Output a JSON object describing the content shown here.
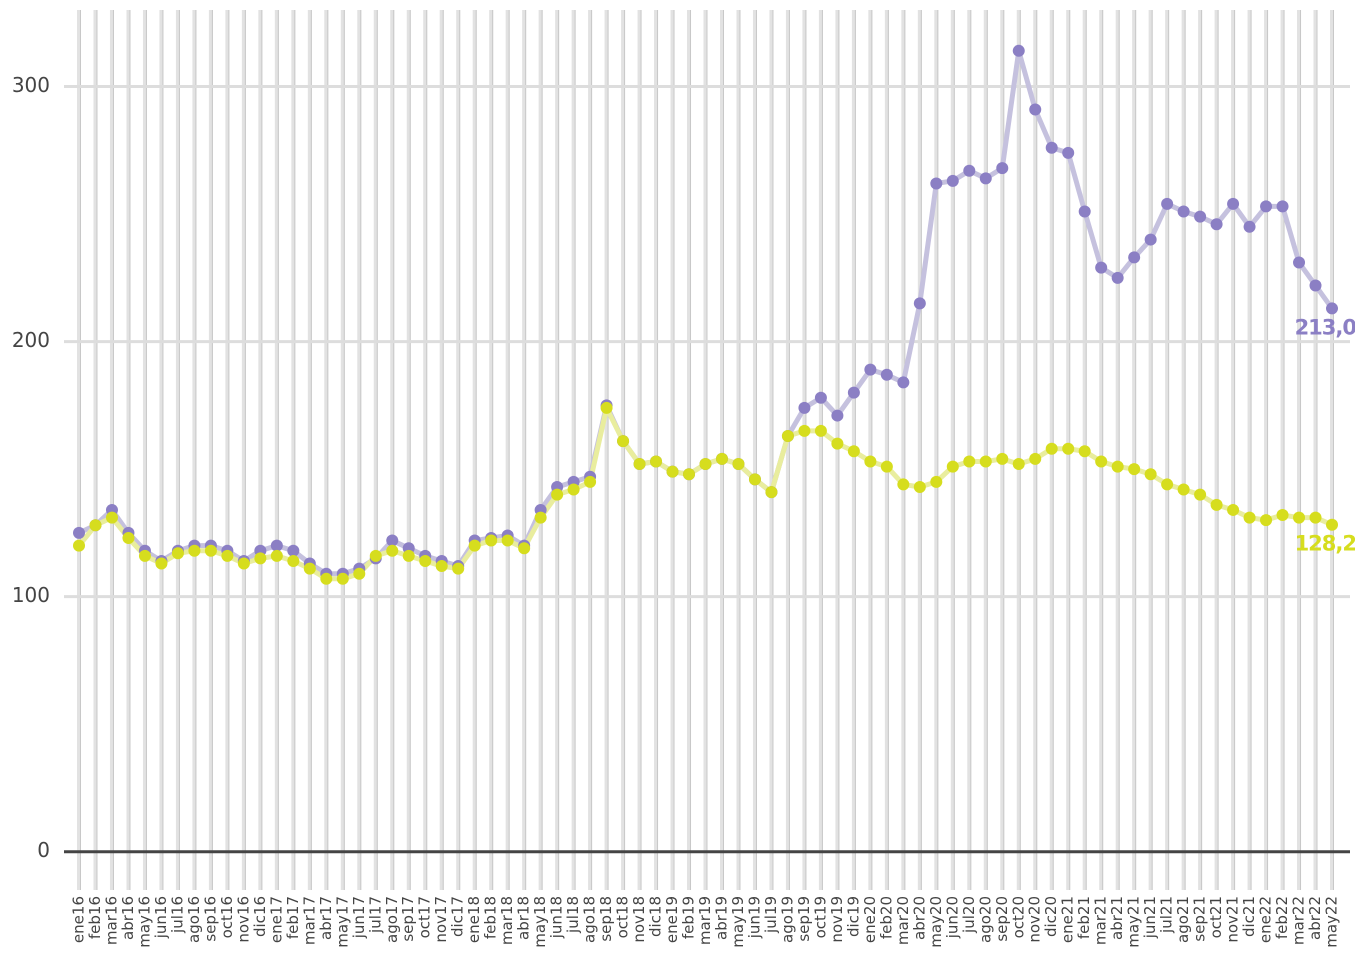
{
  "chart_data": {
    "type": "line",
    "categories": [
      "ene16",
      "feb16",
      "mar16",
      "abr16",
      "may16",
      "jun16",
      "jul16",
      "ago16",
      "sep16",
      "oct16",
      "nov16",
      "dic16",
      "ene17",
      "feb17",
      "mar17",
      "abr17",
      "may17",
      "jun17",
      "jul17",
      "ago17",
      "sep17",
      "oct17",
      "nov17",
      "dic17",
      "ene18",
      "feb18",
      "mar18",
      "abr18",
      "may18",
      "jun18",
      "jul18",
      "ago18",
      "sep18",
      "oct18",
      "nov18",
      "dic18",
      "ene19",
      "feb19",
      "mar19",
      "abr19",
      "may19",
      "jun19",
      "jul19",
      "ago19",
      "sep19",
      "oct19",
      "nov19",
      "dic19",
      "ene20",
      "feb20",
      "mar20",
      "abr20",
      "may20",
      "jun20",
      "jul20",
      "ago20",
      "sep20",
      "oct20",
      "nov20",
      "dic20",
      "ene21",
      "feb21",
      "mar21",
      "abr21",
      "may21",
      "jun21",
      "jul21",
      "ago21",
      "sep21",
      "oct21",
      "nov21",
      "dic21",
      "ene22",
      "feb22",
      "mar22",
      "abr22",
      "may22"
    ],
    "series": [
      {
        "color": "#8b7fc4",
        "line_color": "#c5c1de",
        "values": [
          125,
          128,
          134,
          125,
          118,
          114,
          118,
          120,
          120,
          118,
          114,
          118,
          120,
          118,
          113,
          109,
          109,
          111,
          115,
          122,
          119,
          116,
          114,
          112,
          122,
          123,
          124,
          120,
          134,
          143,
          145,
          147,
          175,
          161,
          152,
          153,
          149,
          148,
          152,
          154,
          152,
          146,
          141,
          163,
          174,
          178,
          171,
          180,
          189,
          187,
          184,
          215,
          262,
          263,
          267,
          264,
          268,
          314,
          291,
          276,
          274,
          251,
          229,
          225,
          233,
          240,
          254,
          251,
          249,
          246,
          254,
          245,
          253,
          253,
          231,
          222,
          213.0
        ],
        "value_labels": [
          null,
          null,
          null,
          null,
          null,
          null,
          null,
          null,
          null,
          null,
          null,
          null,
          null,
          null,
          null,
          null,
          null,
          null,
          null,
          null,
          null,
          null,
          null,
          null,
          null,
          null,
          null,
          null,
          null,
          null,
          null,
          null,
          null,
          null,
          null,
          null,
          null,
          null,
          null,
          null,
          null,
          null,
          null,
          null,
          null,
          null,
          null,
          null,
          null,
          null,
          null,
          null,
          null,
          null,
          null,
          null,
          null,
          null,
          null,
          null,
          null,
          null,
          null,
          null,
          null,
          null,
          null,
          null,
          null,
          null,
          null,
          null,
          null,
          null,
          null,
          null,
          "213,0"
        ]
      },
      {
        "color": "#d6dd1e",
        "line_color": "#e9ed9e",
        "values": [
          120,
          128,
          131,
          123,
          116,
          113,
          117,
          118,
          118,
          116,
          113,
          115,
          116,
          114,
          111,
          107,
          107,
          109,
          116,
          118,
          116,
          114,
          112,
          111,
          120,
          122,
          122,
          119,
          131,
          140,
          142,
          145,
          174,
          161,
          152,
          153,
          149,
          148,
          152,
          154,
          152,
          146,
          141,
          163,
          165,
          165,
          160,
          157,
          153,
          151,
          144,
          143,
          145,
          151,
          153,
          153,
          154,
          152,
          154,
          158,
          158,
          157,
          153,
          151,
          150,
          148,
          144,
          142,
          140,
          136,
          134,
          131,
          130,
          132,
          131,
          131,
          128.2
        ],
        "value_labels": [
          null,
          null,
          null,
          null,
          null,
          null,
          null,
          null,
          null,
          null,
          null,
          null,
          null,
          null,
          null,
          null,
          null,
          null,
          null,
          null,
          null,
          null,
          null,
          null,
          null,
          null,
          null,
          null,
          null,
          null,
          null,
          null,
          null,
          null,
          null,
          null,
          null,
          null,
          null,
          null,
          null,
          null,
          null,
          null,
          null,
          null,
          null,
          null,
          null,
          null,
          null,
          null,
          null,
          null,
          null,
          null,
          null,
          null,
          null,
          null,
          null,
          null,
          null,
          null,
          null,
          null,
          null,
          null,
          null,
          null,
          null,
          null,
          null,
          null,
          null,
          null,
          "128,2"
        ]
      }
    ],
    "ylim": [
      -15,
      330
    ],
    "yticks": [
      0,
      100,
      200,
      300
    ],
    "grid": true
  }
}
